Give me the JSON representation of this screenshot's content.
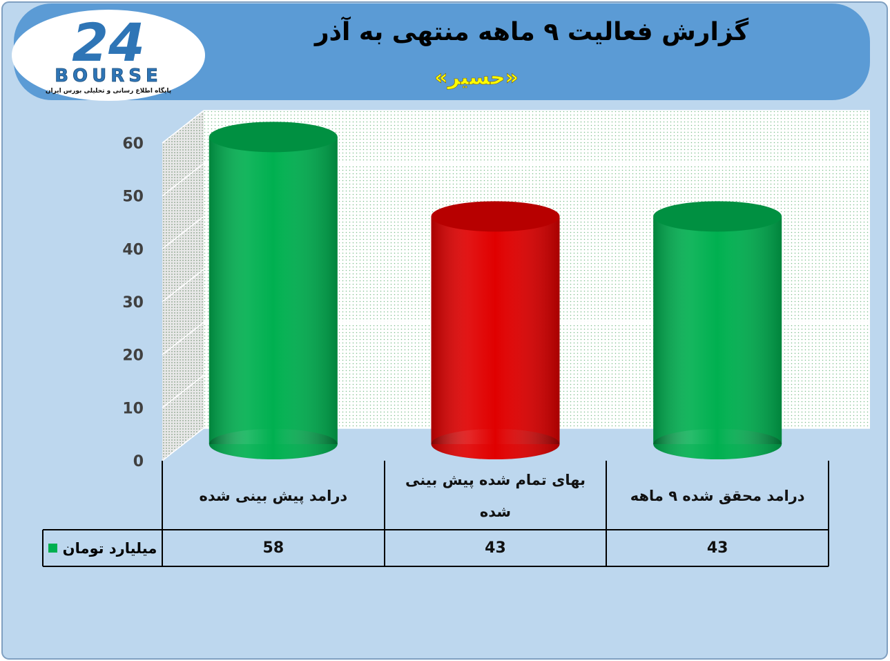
{
  "logo": {
    "mark": "24",
    "text": "BOURSE",
    "tagline": "پایگاه اطلاع رسانی و تحلیلی بورس ایران"
  },
  "chart_data": {
    "type": "bar",
    "title": "گزارش فعالیت ۹ ماهه منتهی به آذر",
    "subtitle": "«حسیر»",
    "categories": [
      "درامد پیش بینی شده",
      "بهای تمام شده پیش بینی شده",
      "درامد محقق شده ۹ ماهه"
    ],
    "series": [
      {
        "name": "میلیارد تومان",
        "color": "#00b050",
        "point_colors": [
          "#00b050",
          "#e00000",
          "#00b050"
        ],
        "values": [
          58,
          43,
          43
        ]
      }
    ],
    "ylim": [
      0,
      60
    ],
    "yticks": [
      0,
      10,
      20,
      30,
      40,
      50,
      60
    ],
    "grid": true
  }
}
